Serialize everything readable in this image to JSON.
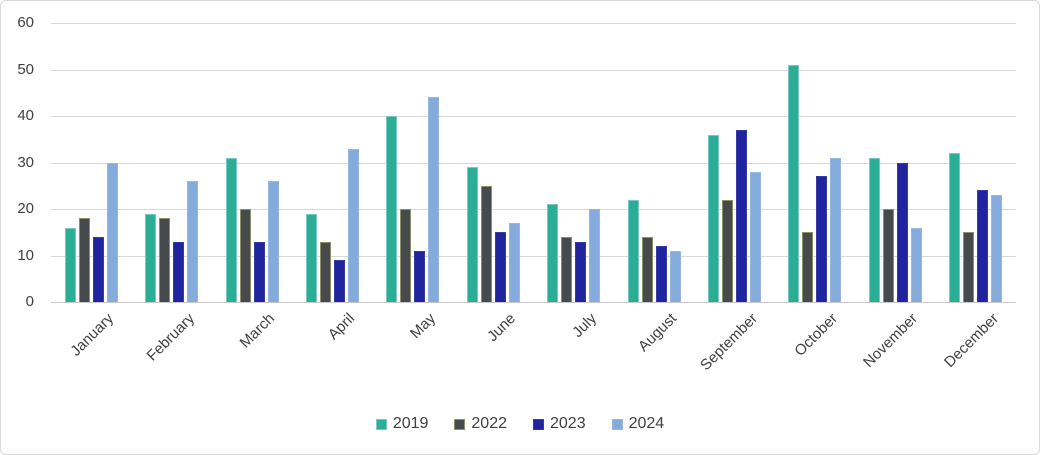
{
  "chart_data": {
    "type": "bar",
    "title": "",
    "xlabel": "",
    "ylabel": "",
    "categories": [
      "January",
      "February",
      "March",
      "April",
      "May",
      "June",
      "July",
      "August",
      "September",
      "October",
      "November",
      "December"
    ],
    "series": [
      {
        "name": "2019",
        "color": "#2bae96",
        "border_color": "#7cc6c6",
        "values": [
          16,
          19,
          31,
          19,
          40,
          29,
          21,
          22,
          36,
          51,
          31,
          32
        ]
      },
      {
        "name": "2022",
        "color": "#474a4d",
        "border_color": "#8d8f64",
        "values": [
          18,
          18,
          20,
          13,
          20,
          25,
          14,
          14,
          22,
          15,
          20,
          15
        ]
      },
      {
        "name": "2023",
        "color": "#20249e",
        "border_color": "#363ca6",
        "values": [
          14,
          13,
          13,
          9,
          11,
          15,
          13,
          12,
          37,
          27,
          30,
          24
        ]
      },
      {
        "name": "2024",
        "color": "#84abdb",
        "border_color": "#95b8e2",
        "values": [
          30,
          26,
          26,
          33,
          44,
          17,
          20,
          11,
          28,
          31,
          16,
          23
        ]
      }
    ],
    "y_axis": {
      "min": 0,
      "max": 60,
      "step": 10,
      "tick_labels": [
        "0",
        "10",
        "20",
        "30",
        "40",
        "50",
        "60"
      ]
    },
    "legend": {
      "position": "bottom-center",
      "entries": [
        "2019",
        "2022",
        "2023",
        "2024"
      ]
    },
    "grid": "horizontal",
    "colors": {
      "grid_line": "#d9d9d9",
      "axis_line": "#c9c9c9",
      "text": "#404040",
      "chart_border": "#d9d9d9",
      "background": "#ffffff"
    }
  }
}
